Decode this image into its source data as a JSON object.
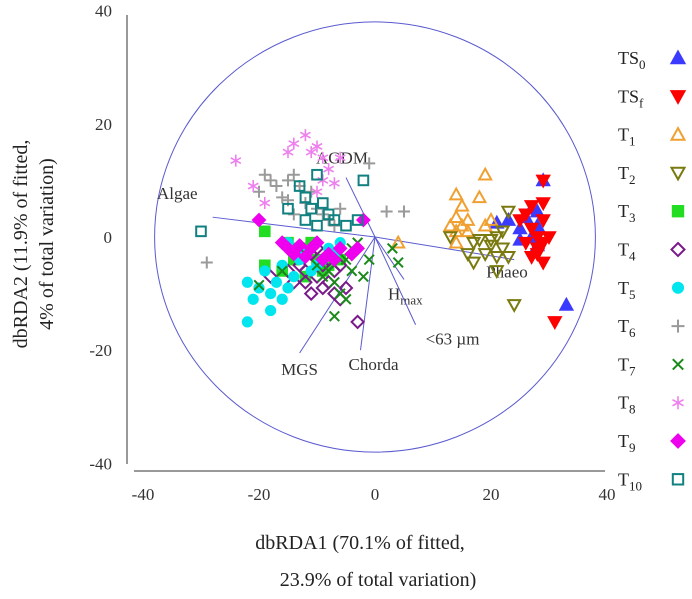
{
  "chart_data": {
    "type": "scatter",
    "title": "",
    "xlabel": {
      "line1": "dbRDA1 (70.1% of fitted,",
      "line2": "23.9% of total variation)"
    },
    "ylabel": {
      "line1": "dbRDA2 (11.9% of fitted,",
      "line2": "4% of total variation)"
    },
    "xlim": [
      -40,
      40
    ],
    "ylim": [
      -40,
      40
    ],
    "xticks": [
      "-40",
      "-20",
      "0",
      "20",
      "40"
    ],
    "yticks": [
      "40",
      "20",
      "0",
      "-20",
      "-40"
    ],
    "grid": false,
    "legend_position": "right",
    "circle": {
      "cx": 0,
      "cy": 0,
      "r": 38
    },
    "vectors": [
      {
        "label": "AGDM",
        "x": -5,
        "y": 10.5
      },
      {
        "label": "Algae",
        "x": -28,
        "y": 3.5
      },
      {
        "label": "Hmax",
        "label_main": "H",
        "label_sub": "max",
        "x": 5,
        "y": -7.5
      },
      {
        "label": "<63 µm",
        "x": 7,
        "y": -15.5
      },
      {
        "label": "MGS",
        "x": -13,
        "y": -20.5
      },
      {
        "label": "Chorda",
        "x": -2.5,
        "y": -20
      },
      {
        "label": "Phaeo",
        "x": 24,
        "y": -4
      }
    ],
    "series": [
      {
        "name": "TS0",
        "label_main": "TS",
        "label_sub": "0",
        "marker": "triangle-up",
        "color": "#3b3bff",
        "filled": true,
        "points": [
          [
            21,
            2.5
          ],
          [
            23,
            3
          ],
          [
            25,
            1.5
          ],
          [
            26,
            3.5
          ],
          [
            27,
            5
          ],
          [
            28,
            4.5
          ],
          [
            29,
            10
          ],
          [
            28,
            2
          ],
          [
            27,
            0
          ],
          [
            25,
            -0.5
          ],
          [
            33,
            -12
          ],
          [
            28,
            -1.5
          ]
        ]
      },
      {
        "name": "TSf",
        "label_main": "TS",
        "label_sub": "f",
        "marker": "triangle-down",
        "color": "#ff0000",
        "filled": true,
        "points": [
          [
            25,
            3
          ],
          [
            26,
            4
          ],
          [
            27,
            5.5
          ],
          [
            29,
            6
          ],
          [
            29,
            3
          ],
          [
            27,
            1.5
          ],
          [
            28,
            0
          ],
          [
            30,
            0
          ],
          [
            29,
            -1
          ],
          [
            28,
            -2
          ],
          [
            29,
            -4.5
          ],
          [
            28,
            -3
          ],
          [
            27,
            -3.5
          ],
          [
            31,
            -15
          ],
          [
            26,
            -1
          ],
          [
            29,
            10
          ]
        ]
      },
      {
        "name": "T1",
        "label_main": "T",
        "label_sub": "1",
        "marker": "triangle-up",
        "color": "#f0a030",
        "filled": false,
        "points": [
          [
            19,
            11
          ],
          [
            18,
            7
          ],
          [
            14,
            7.5
          ],
          [
            15,
            5.5
          ],
          [
            14,
            3.5
          ],
          [
            16,
            3
          ],
          [
            13,
            2
          ],
          [
            14,
            1
          ],
          [
            15,
            2
          ],
          [
            19,
            2
          ],
          [
            20,
            3
          ],
          [
            14,
            -1
          ],
          [
            4,
            -1
          ],
          [
            16,
            1
          ]
        ]
      },
      {
        "name": "T2",
        "label_main": "T",
        "label_sub": "2",
        "marker": "triangle-down",
        "color": "#7a7a10",
        "filled": false,
        "points": [
          [
            23,
            4.5
          ],
          [
            22,
            1
          ],
          [
            21,
            0
          ],
          [
            18,
            -0.5
          ],
          [
            17,
            -1
          ],
          [
            20,
            -1.5
          ],
          [
            22,
            -2
          ],
          [
            19,
            -3
          ],
          [
            21,
            -3.5
          ],
          [
            23,
            -3.5
          ],
          [
            16,
            -3
          ],
          [
            17,
            -4.5
          ],
          [
            21,
            -6
          ],
          [
            24,
            -12
          ],
          [
            13,
            0
          ],
          [
            20,
            -0.5
          ]
        ]
      },
      {
        "name": "T3",
        "label_main": "T",
        "label_sub": "3",
        "marker": "square",
        "color": "#22dd22",
        "filled": true,
        "points": [
          [
            -19,
            1
          ],
          [
            -15,
            -1
          ],
          [
            -13,
            -2
          ],
          [
            -12,
            -3
          ],
          [
            -10,
            -4
          ],
          [
            -8,
            -5
          ],
          [
            -7,
            -3
          ],
          [
            -9,
            -6
          ],
          [
            -14,
            -4
          ],
          [
            -12,
            -7
          ],
          [
            -19,
            -5
          ],
          [
            -16,
            -6
          ],
          [
            -11,
            -1
          ],
          [
            -6,
            -4
          ]
        ]
      },
      {
        "name": "T4",
        "label_main": "T",
        "label_sub": "4",
        "marker": "diamond",
        "color": "#7a1a8a",
        "filled": false,
        "points": [
          [
            -18,
            -7
          ],
          [
            -15,
            -6
          ],
          [
            -13,
            -5
          ],
          [
            -12,
            -8
          ],
          [
            -10,
            -7
          ],
          [
            -9,
            -9
          ],
          [
            -11,
            -10
          ],
          [
            -8,
            -8
          ],
          [
            -7,
            -6
          ],
          [
            -6,
            -5
          ],
          [
            -5,
            -9
          ],
          [
            -6,
            -11
          ],
          [
            -3,
            -15
          ],
          [
            -10,
            -2
          ],
          [
            -9,
            -5
          ],
          [
            -8,
            -4
          ],
          [
            -12,
            -6
          ],
          [
            -14,
            -8
          ],
          [
            -7,
            -10
          ],
          [
            -4,
            -3
          ],
          [
            -11,
            -3
          ]
        ]
      },
      {
        "name": "T5",
        "label_main": "T",
        "label_sub": "5",
        "marker": "circle",
        "color": "#00e5ee",
        "filled": true,
        "points": [
          [
            -22,
            -8
          ],
          [
            -21,
            -11
          ],
          [
            -20,
            -9
          ],
          [
            -19,
            -6
          ],
          [
            -18,
            -10
          ],
          [
            -17,
            -8
          ],
          [
            -16,
            -5
          ],
          [
            -15,
            -9
          ],
          [
            -14,
            -7
          ],
          [
            -13,
            -4
          ],
          [
            -12,
            -3
          ],
          [
            -11,
            -6
          ],
          [
            -10,
            -5
          ],
          [
            -9,
            -4
          ],
          [
            -8,
            -2
          ],
          [
            -7,
            -3
          ],
          [
            -6,
            -1
          ],
          [
            -18,
            -13
          ],
          [
            -22,
            -15
          ],
          [
            -16,
            -11
          ],
          [
            -15,
            -1
          ]
        ]
      },
      {
        "name": "T6",
        "label_main": "T",
        "label_sub": "6",
        "marker": "plus",
        "color": "#9a9a9a",
        "filled": true,
        "points": [
          [
            -29,
            -4.5
          ],
          [
            -20,
            8
          ],
          [
            -19,
            11
          ],
          [
            -18,
            10
          ],
          [
            -17,
            9
          ],
          [
            -16,
            7
          ],
          [
            -15,
            10
          ],
          [
            -14,
            11
          ],
          [
            -13,
            9
          ],
          [
            -12,
            6
          ],
          [
            -11,
            8
          ],
          [
            -10,
            5
          ],
          [
            -9,
            4
          ],
          [
            -8,
            3
          ],
          [
            -7,
            2
          ],
          [
            -6,
            5
          ],
          [
            -1,
            13
          ],
          [
            2,
            4.5
          ],
          [
            5,
            4.5
          ],
          [
            -15,
            6.5
          ],
          [
            -14,
            4
          ]
        ]
      },
      {
        "name": "T7",
        "label_main": "T",
        "label_sub": "7",
        "marker": "cross",
        "color": "#1a8a1a",
        "filled": true,
        "points": [
          [
            -20,
            -8.5
          ],
          [
            -16,
            -6
          ],
          [
            -12,
            -3
          ],
          [
            -10,
            -5
          ],
          [
            -9,
            -7
          ],
          [
            -8,
            -6
          ],
          [
            -7,
            -8
          ],
          [
            -6,
            -10
          ],
          [
            -5,
            -4
          ],
          [
            -4,
            -2
          ],
          [
            -3,
            -1
          ],
          [
            -2,
            -7
          ],
          [
            -1,
            -4
          ],
          [
            3,
            -2
          ],
          [
            4,
            -4.5
          ],
          [
            -7,
            -14
          ],
          [
            -5,
            -11
          ],
          [
            -4,
            -6
          ]
        ]
      },
      {
        "name": "T8",
        "label_main": "T",
        "label_sub": "8",
        "marker": "asterisk",
        "color": "#ee80ee",
        "filled": true,
        "points": [
          [
            -24,
            13.5
          ],
          [
            -21,
            9
          ],
          [
            -19,
            6
          ],
          [
            -15,
            15
          ],
          [
            -14,
            16.5
          ],
          [
            -12,
            18
          ],
          [
            -11,
            15
          ],
          [
            -10,
            16
          ],
          [
            -9,
            14
          ],
          [
            -8,
            12
          ],
          [
            -7,
            9.5
          ],
          [
            -9,
            10
          ],
          [
            -10,
            8
          ],
          [
            -6,
            14
          ]
        ]
      },
      {
        "name": "T9",
        "label_main": "T",
        "label_sub": "9",
        "marker": "diamond",
        "color": "#ee00ee",
        "filled": true,
        "points": [
          [
            -20,
            3
          ],
          [
            -16,
            -1
          ],
          [
            -15,
            -2
          ],
          [
            -14,
            -3
          ],
          [
            -13,
            -1.5
          ],
          [
            -12,
            -3.5
          ],
          [
            -11,
            -2
          ],
          [
            -10,
            -1
          ],
          [
            -9,
            -4
          ],
          [
            -8,
            -3
          ],
          [
            -7,
            -4
          ],
          [
            -6,
            -2
          ],
          [
            -4,
            -3
          ],
          [
            -3,
            -2
          ],
          [
            -2,
            3
          ]
        ]
      },
      {
        "name": "T10",
        "label_main": "T",
        "label_sub": "10",
        "marker": "square",
        "color": "#118080",
        "filled": false,
        "points": [
          [
            -30,
            1
          ],
          [
            -15,
            5
          ],
          [
            -13,
            9
          ],
          [
            -12,
            7
          ],
          [
            -11,
            5
          ],
          [
            -10,
            11
          ],
          [
            -9,
            6
          ],
          [
            -8,
            4
          ],
          [
            -7,
            3
          ],
          [
            -5,
            2
          ],
          [
            -3,
            3
          ],
          [
            -2,
            10
          ],
          [
            -12,
            3
          ],
          [
            -10,
            2
          ]
        ]
      }
    ]
  }
}
